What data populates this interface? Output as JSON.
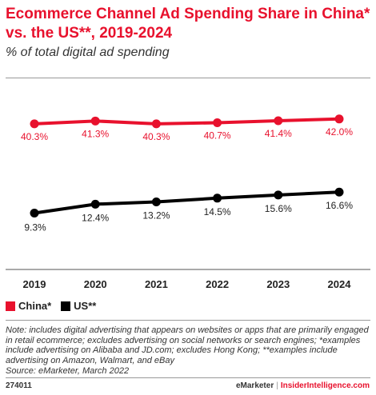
{
  "header": {
    "title": "Ecommerce Channel Ad Spending Share in China* vs. the US**, 2019-2024",
    "subtitle": "% of total digital ad spending"
  },
  "footer": {
    "note": "Note: includes digital advertising that appears on websites or apps that are primarily engaged in retail ecommerce; excludes advertising on social networks or search engines; *examples include advertising on Alibaba and JD.com; excludes Hong Kong; **examples include advertising on Amazon, Walmart, and eBay",
    "source": "Source: eMarketer, March 2022",
    "chart_id": "274011",
    "brand": "eMarketer",
    "separator": "|",
    "brand2": "InsiderIntelligence.com"
  },
  "colors": {
    "china": "#e8112d",
    "us": "#000000"
  },
  "chart_data": {
    "type": "line",
    "title": "Ecommerce Channel Ad Spending Share in China* vs. the US**, 2019-2024",
    "subtitle": "% of total digital ad spending",
    "xlabel": "",
    "ylabel": "",
    "x": [
      "2019",
      "2020",
      "2021",
      "2022",
      "2023",
      "2024"
    ],
    "ylim": [
      0,
      50
    ],
    "grid": false,
    "legend_position": "bottom-left",
    "series": [
      {
        "name": "China*",
        "color": "#e8112d",
        "values": [
          40.3,
          41.3,
          40.3,
          40.7,
          41.4,
          42.0
        ],
        "labels": [
          "40.3%",
          "41.3%",
          "40.3%",
          "40.7%",
          "41.4%",
          "42.0%"
        ]
      },
      {
        "name": "US**",
        "color": "#000000",
        "values": [
          9.3,
          12.4,
          13.2,
          14.5,
          15.6,
          16.6
        ],
        "labels": [
          "9.3%",
          "12.4%",
          "13.2%",
          "14.5%",
          "15.6%",
          "16.6%"
        ]
      }
    ]
  }
}
